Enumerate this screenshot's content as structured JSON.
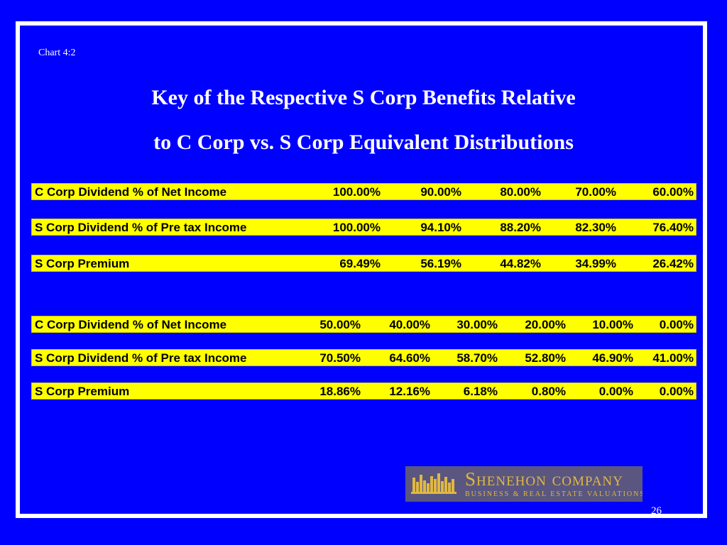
{
  "chart_label": "Chart 4:2",
  "title_line1": "Key of the Respective S Corp Benefits Relative",
  "title_line2": "to C Corp vs. S Corp Equivalent Distributions",
  "table1": [
    {
      "label": "C Corp Dividend % of Net Income",
      "values": [
        "100.00%",
        "90.00%",
        "80.00%",
        "70.00%",
        "60.00%"
      ]
    },
    {
      "label": "S Corp Dividend % of Pre tax Income",
      "values": [
        "100.00%",
        "94.10%",
        "88.20%",
        "82.30%",
        "76.40%"
      ]
    },
    {
      "label": "S Corp Premium",
      "values": [
        "69.49%",
        "56.19%",
        "44.82%",
        "34.99%",
        "26.42%"
      ]
    }
  ],
  "table2": [
    {
      "label": "C Corp Dividend % of Net Income",
      "values": [
        "50.00%",
        "40.00%",
        "30.00%",
        "20.00%",
        "10.00%",
        "0.00%"
      ]
    },
    {
      "label": "S Corp Dividend % of Pre tax Income",
      "values": [
        "70.50%",
        "64.60%",
        "58.70%",
        "52.80%",
        "46.90%",
        "41.00%"
      ]
    },
    {
      "label": "S Corp Premium",
      "values": [
        "18.86%",
        "12.16%",
        "6.18%",
        "0.80%",
        "0.00%",
        "0.00%"
      ]
    }
  ],
  "logo": {
    "name": "Shenehon company",
    "tagline": "BUSINESS & REAL ESTATE VALUATIONS",
    "icon": "city-skyline-icon"
  },
  "page_number": "26",
  "colors": {
    "background": "#0000ff",
    "frame": "#ffffff",
    "row_fill": "#ffff00",
    "logo_bg": "#5a5680",
    "logo_gold": "#e0b840"
  }
}
